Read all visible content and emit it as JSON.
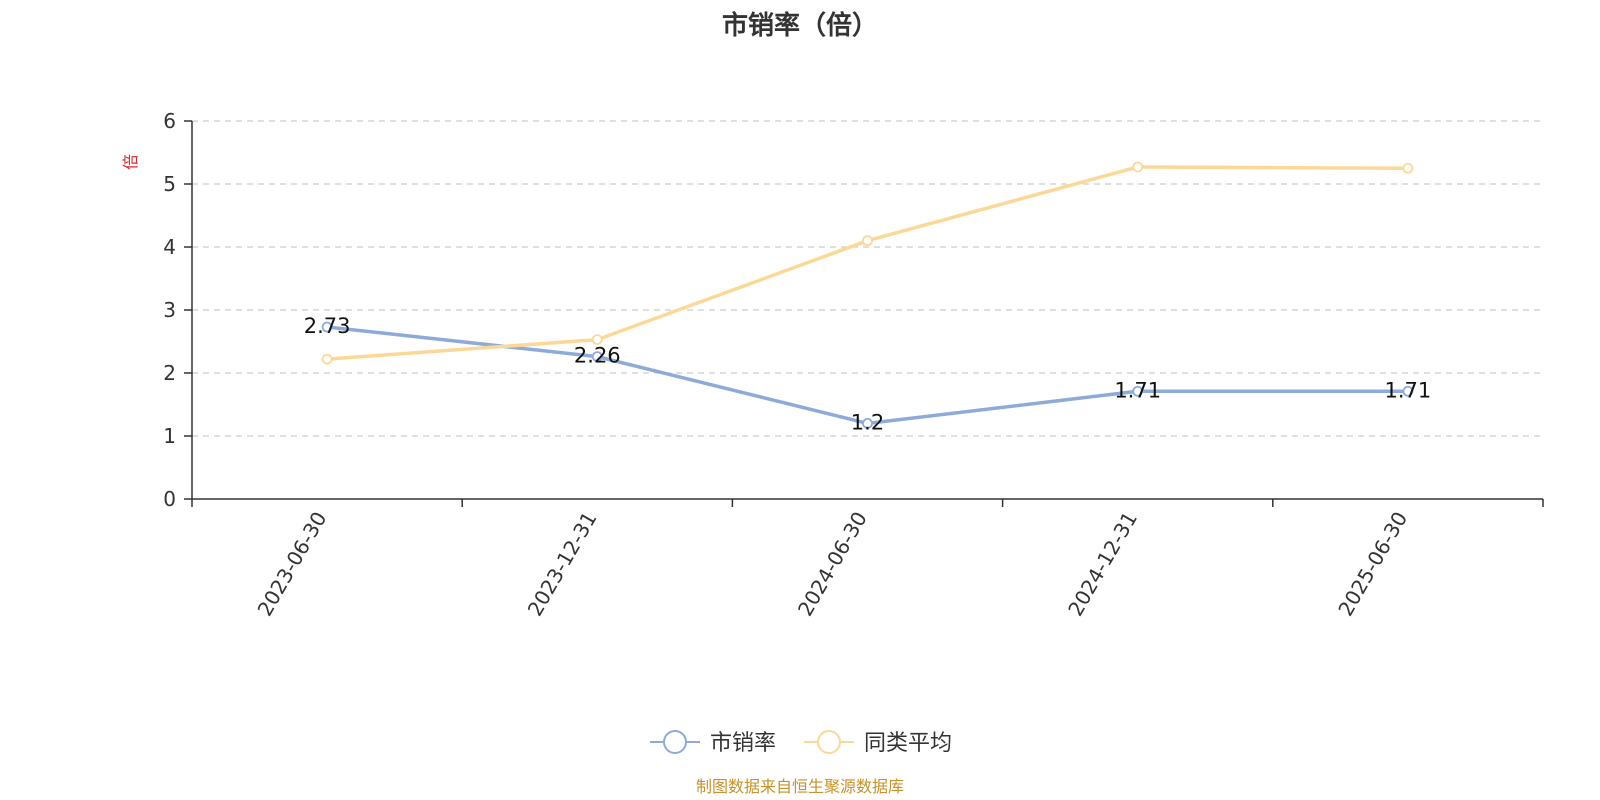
{
  "chart_data": {
    "type": "line",
    "title": "市销率（倍）",
    "ylabel": "倍",
    "xlabel": "",
    "categories": [
      "2023-06-30",
      "2023-12-31",
      "2024-06-30",
      "2024-12-31",
      "2025-06-30"
    ],
    "ylim": [
      0,
      6
    ],
    "yticks": [
      "0",
      "1",
      "2",
      "3",
      "4",
      "5",
      "6"
    ],
    "grid": true,
    "legend_position": "bottom-center",
    "series": [
      {
        "name": "市销率",
        "values": [
          2.73,
          2.26,
          1.2,
          1.71,
          1.71
        ],
        "labels": [
          "2.73",
          "2.26",
          "1.2",
          "1.71",
          "1.71"
        ],
        "color": "#8eaad8"
      },
      {
        "name": "同类平均",
        "values": [
          2.22,
          2.53,
          4.1,
          5.27,
          5.25
        ],
        "color": "#fcd898"
      }
    ]
  },
  "footer": {
    "source": "制图数据来自恒生聚源数据库"
  }
}
